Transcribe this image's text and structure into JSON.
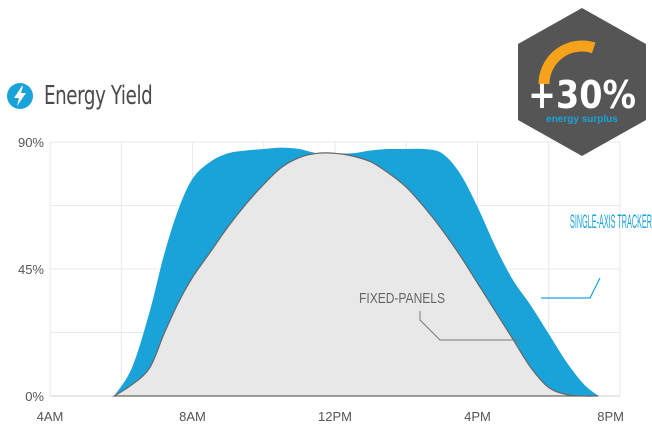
{
  "header": {
    "title": "Energy Yield",
    "icon": "lightning-bolt-icon",
    "icon_color": "#1aa3d9"
  },
  "badge": {
    "value": "+30%",
    "caption": "energy surplus",
    "bg_color": "#555555",
    "arc_color": "#f7a21b",
    "caption_color": "#1aa3d9",
    "gauge_level": 0.6
  },
  "chart_data": {
    "type": "area",
    "x_ticks": [
      {
        "value": 4,
        "label": "4AM"
      },
      {
        "value": 8,
        "label": "8AM"
      },
      {
        "value": 12,
        "label": "12PM"
      },
      {
        "value": 16,
        "label": "4PM"
      },
      {
        "value": 20,
        "label": "8PM"
      }
    ],
    "y_ticks": [
      {
        "value": 0,
        "label": "0%"
      },
      {
        "value": 45,
        "label": "45%"
      },
      {
        "value": 90,
        "label": "90%"
      }
    ],
    "xlim": [
      4,
      20
    ],
    "ylim": [
      0,
      90
    ],
    "grid": true,
    "series": [
      {
        "name": "SINGLE-AXIS TRACKER",
        "color": "#1aa3d9",
        "x": [
          5.8,
          6.3,
          6.8,
          7.2,
          7.6,
          8.0,
          8.5,
          9.0,
          9.5,
          10.0,
          10.5,
          11.0,
          11.5,
          12.0,
          12.5,
          13.0,
          13.5,
          14.0,
          14.5,
          15.0,
          15.5,
          16.0,
          16.5,
          17.0,
          17.5,
          18.0,
          18.5,
          19.0,
          19.4
        ],
        "y": [
          0,
          10,
          30,
          50,
          66,
          77,
          83,
          86,
          87,
          87.5,
          88,
          87.5,
          86,
          86,
          86,
          87,
          87.5,
          87.5,
          87.5,
          86,
          79,
          67,
          53,
          41,
          32,
          22,
          12,
          4,
          0
        ]
      },
      {
        "name": "FIXED-PANELS",
        "color": "#e8e8e8",
        "x": [
          5.8,
          6.3,
          6.8,
          7.2,
          7.6,
          8.0,
          8.5,
          9.0,
          9.5,
          10.0,
          10.5,
          11.0,
          11.5,
          12.0,
          12.5,
          13.0,
          13.5,
          14.0,
          14.5,
          15.0,
          15.5,
          16.0,
          16.5,
          17.0,
          17.5,
          18.0,
          18.5,
          19.0,
          19.4
        ],
        "y": [
          0,
          4,
          10,
          22,
          33,
          42,
          51,
          60,
          68,
          75,
          81,
          84.5,
          86,
          86,
          85,
          83,
          79,
          74,
          67,
          59,
          50,
          40,
          30,
          20,
          10,
          3,
          0.5,
          0,
          0
        ]
      }
    ]
  }
}
